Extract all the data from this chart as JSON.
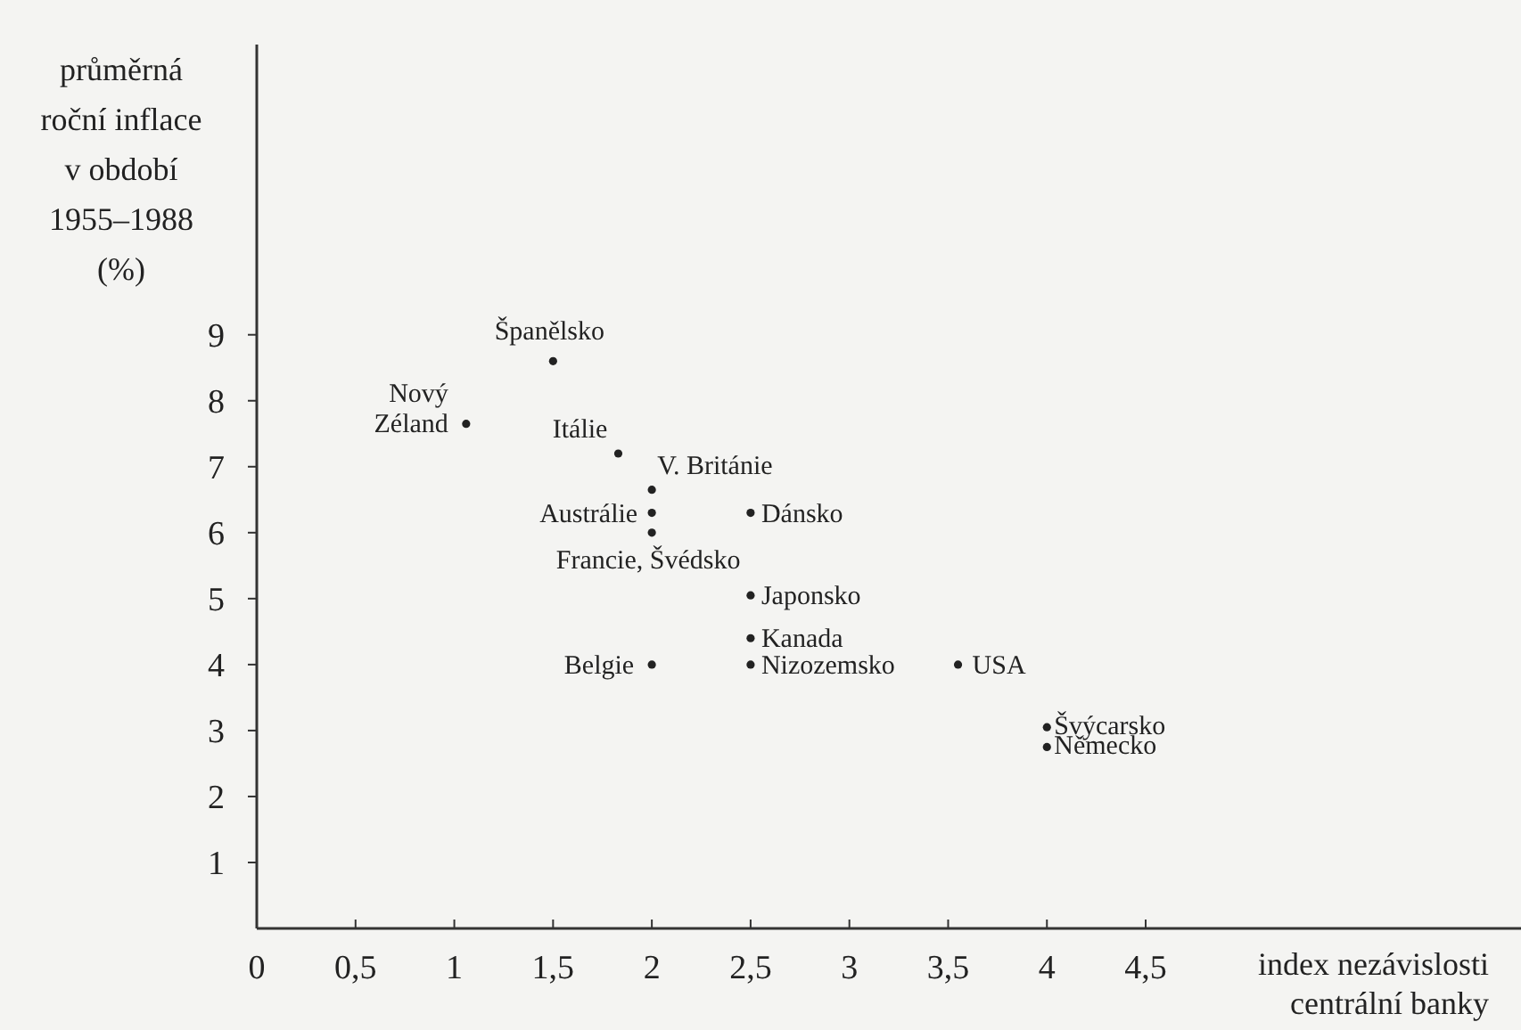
{
  "chart_data": {
    "type": "scatter",
    "ylabel": "průměrná\nroční inflace\nv období\n1955–1988\n(%)",
    "xlabel": "index nezávislosti\ncentrální banky",
    "marker": "circle",
    "grid": false,
    "x": [
      1.06,
      1.5,
      1.83,
      2,
      2,
      2,
      2.5,
      2.5,
      2.5,
      2.5,
      2,
      3.55,
      4,
      4
    ],
    "values": [
      7.65,
      8.6,
      7.2,
      6.65,
      6.3,
      6,
      6.3,
      5.05,
      4.4,
      4,
      4,
      4,
      3.05,
      2.75
    ],
    "color": "#222222",
    "xlim": [
      0,
      6.4
    ],
    "ylim": [
      0,
      13.4
    ],
    "xticks": [
      {
        "value": 0,
        "label": "0"
      },
      {
        "value": 0.5,
        "label": "0,5"
      },
      1,
      {
        "value": 1.5,
        "label": "1,5"
      },
      2,
      {
        "value": 2.5,
        "label": "2,5"
      },
      3,
      {
        "value": 3.5,
        "label": "3,5"
      },
      4,
      {
        "value": 4.5,
        "label": "4,5"
      }
    ],
    "yticks": [
      1,
      2,
      3,
      4,
      5,
      6,
      7,
      8,
      9
    ],
    "annotations": [
      {
        "text": "Nový Zéland",
        "x": 1.06,
        "y": 7.65
      },
      {
        "text": "Španělsko",
        "x": 1.5,
        "y": 8.6
      },
      {
        "text": "Itálie",
        "x": 1.83,
        "y": 7.2
      },
      {
        "text": "V. Británie",
        "x": 2,
        "y": 6.65
      },
      {
        "text": "Austrálie",
        "x": 2,
        "y": 6.3
      },
      {
        "text": "Francie, Švédsko",
        "x": 2,
        "y": 6
      },
      {
        "text": "Dánsko",
        "x": 2.5,
        "y": 6.3
      },
      {
        "text": "Japonsko",
        "x": 2.5,
        "y": 5.05
      },
      {
        "text": "Kanada",
        "x": 2.5,
        "y": 4.4
      },
      {
        "text": "Nizozemsko",
        "x": 2.5,
        "y": 4
      },
      {
        "text": "Belgie",
        "x": 2,
        "y": 4
      },
      {
        "text": "USA",
        "x": 3.55,
        "y": 4
      },
      {
        "text": "Švýcarsko",
        "x": 4,
        "y": 3.05
      },
      {
        "text": "Německo",
        "x": 4,
        "y": 2.75
      }
    ]
  }
}
